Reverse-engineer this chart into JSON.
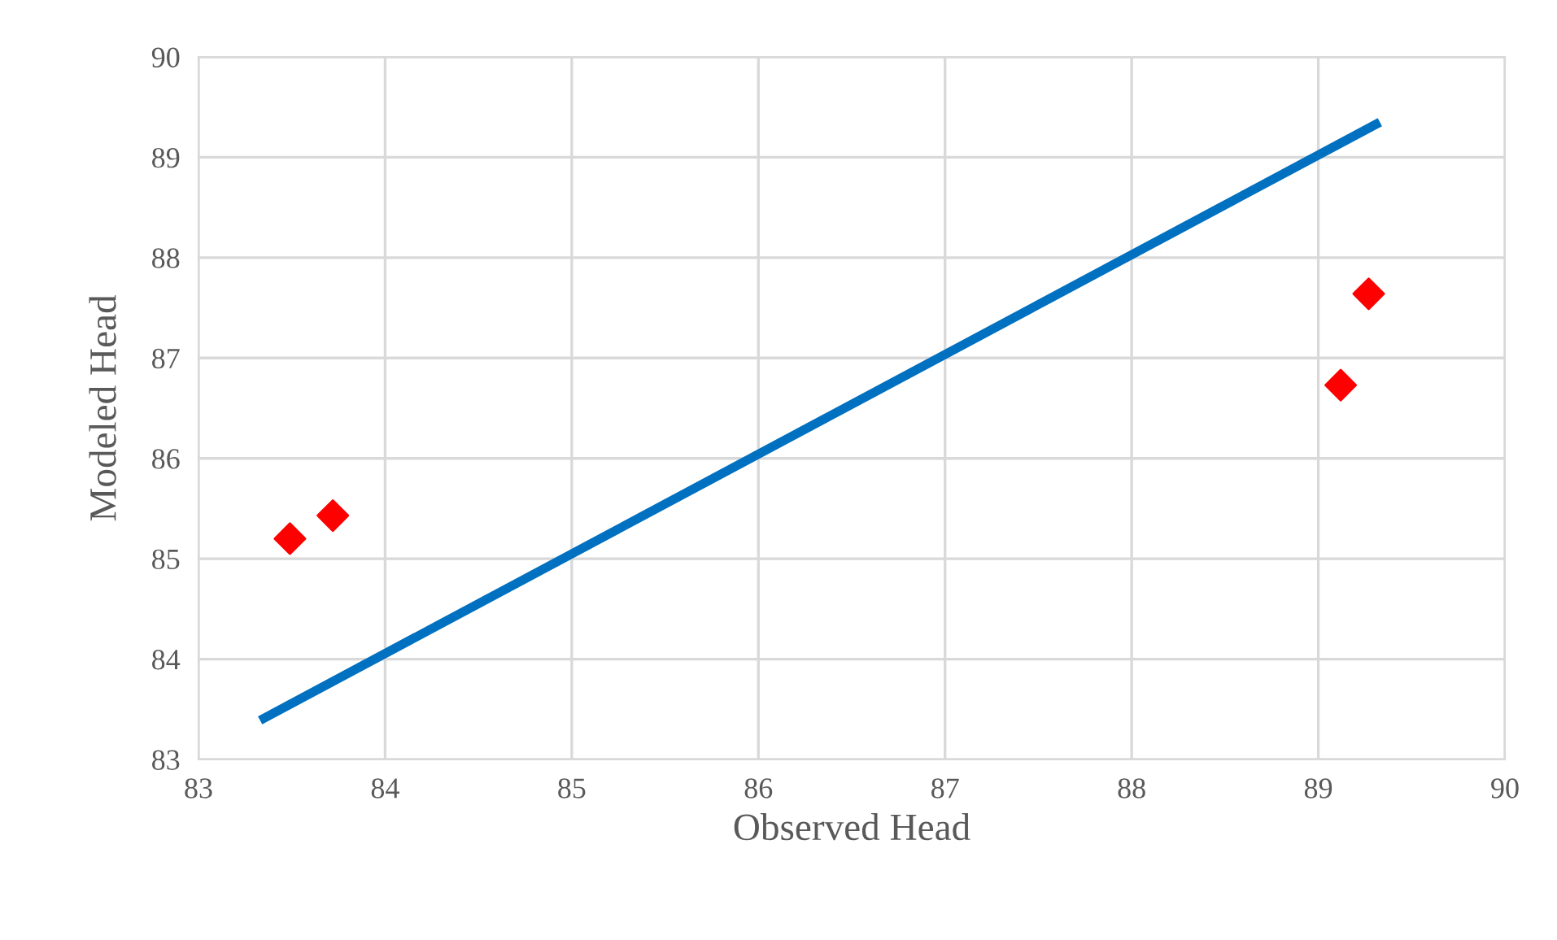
{
  "chart_data": {
    "type": "scatter",
    "xlabel": "Observed Head",
    "ylabel": "Modeled Head",
    "xlim": [
      83,
      90
    ],
    "xticks": [
      83,
      84,
      85,
      86,
      87,
      88,
      89,
      90
    ],
    "ylim": [
      83,
      90
    ],
    "yticks": [
      83,
      84,
      85,
      86,
      87,
      88,
      89,
      90
    ],
    "grid": true,
    "legend": false,
    "series": [
      {
        "type": "line",
        "color": "#0070c0",
        "x": [
          83.33,
          89.33
        ],
        "values": [
          83.39,
          89.35
        ],
        "marker": "none",
        "line_style": "solid"
      },
      {
        "color": "#ff0000",
        "x": [
          83.49,
          83.72,
          89.12,
          89.27
        ],
        "values": [
          85.2,
          85.43,
          86.73,
          87.64
        ],
        "marker": "diamond"
      }
    ]
  }
}
